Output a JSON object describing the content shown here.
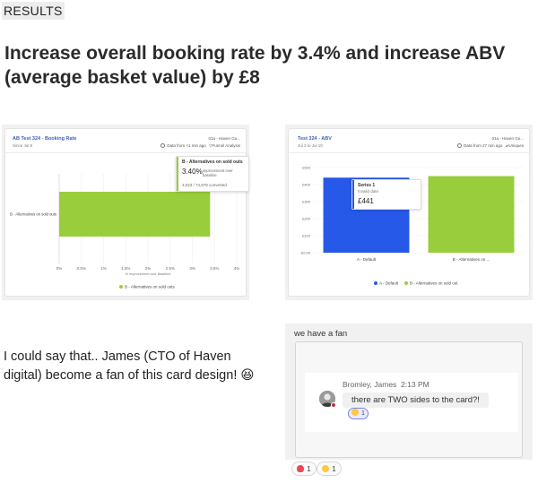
{
  "section_label": "RESULTS",
  "headline": "Increase overall booking rate by 3.4% and increase ABV (average basket value) by £8",
  "colors": {
    "green": "#9acd3c",
    "blue": "#2759e8",
    "card_title": "#3f5fb5"
  },
  "booking_card": {
    "title": "AB Test 324 - Booking Rate",
    "since": "Since Jul 8",
    "project": "01a - Haven Gu...",
    "data_from": "Data from <1 min ago",
    "report_type": "Funnel Analysis",
    "tooltip": {
      "title": "B - Alternatives on sold outs",
      "value": "3.40%",
      "value_desc": "improvement over baseline",
      "converted": "3,023 / 74,678  converted"
    },
    "legend": "B - Alternatives on sold outs"
  },
  "abv_card": {
    "title": "Test 324 - ABV",
    "date_range": "Jul 3 to Jul 10",
    "project": "01a - Haven Gu...",
    "data_from": "Data from 27 min ago",
    "report_type": "Uniques",
    "tooltip": {
      "series": "Series 1",
      "note": "Invalid date",
      "value": "£441"
    },
    "legend": [
      "A - Default",
      "B - Alternatives on sold out"
    ]
  },
  "chart_data": [
    {
      "type": "bar",
      "title": "AB Test 324 - Booking Rate",
      "orientation": "horizontal",
      "categories": [
        "B - Alternatives on sold outs"
      ],
      "values": [
        3.4
      ],
      "xlabel": "% Improvement over Baseline",
      "xlim": [
        0,
        4
      ],
      "xticks": [
        "0%",
        "0.5%",
        "1%",
        "1.5%",
        "2%",
        "2.5%",
        "3%",
        "3.5%",
        "4%"
      ],
      "legend": "bottom"
    },
    {
      "type": "bar",
      "title": "Test 324 - ABV",
      "categories": [
        "A - Default",
        "B - Alternatives on ..."
      ],
      "values": [
        441,
        450
      ],
      "ylim": [
        0,
        500
      ],
      "yticks": [
        "£0.00",
        "£100",
        "£200",
        "£300",
        "£400",
        "£500"
      ],
      "legend": "bottom"
    }
  ],
  "story_text": "I could say that.. James (CTO of Haven digital) become a fan of this card design! 😆",
  "fan": {
    "title": "we have a fan",
    "author": "Bromley, James",
    "time": "2:13 PM",
    "message": "there are TWO sides to the card?!",
    "reaction_count": "1"
  },
  "reactions": [
    {
      "emoji": "heart",
      "count": "1"
    },
    {
      "emoji": "laugh",
      "count": "1"
    }
  ]
}
